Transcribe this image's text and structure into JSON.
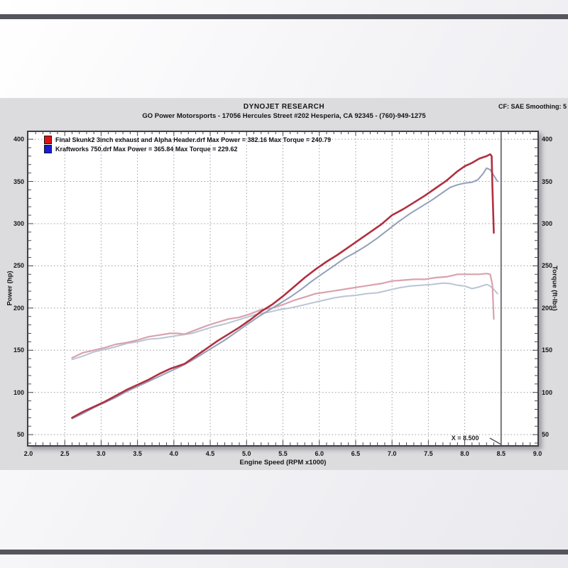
{
  "header": {
    "brand": "DYNOJET RESEARCH",
    "dealer": "GO Power Motorsports - 17056 Hercules Street #202 Hesperia, CA 92345 - (760)-949-1275",
    "cf": "CF: SAE  Smoothing: 5"
  },
  "chart_data": {
    "type": "line",
    "title": "DYNOJET RESEARCH",
    "subtitle": "GO Power Motorsports - 17056 Hercules Street #202 Hesperia, CA 92345 - (760)-949-1275",
    "xlabel": "Engine Speed (RPM x1000)",
    "ylabel_left": "Power (hp)",
    "ylabel_right": "Torque (ft-lbs)",
    "xlim": [
      2.0,
      9.0
    ],
    "ylim": [
      37.5,
      408.5
    ],
    "x_ticks": [
      "2.0",
      "2.5",
      "3.0",
      "3.5",
      "4.0",
      "4.5",
      "5.0",
      "5.5",
      "6.0",
      "6.5",
      "7.0",
      "7.5",
      "8.0",
      "8.5",
      "9.0"
    ],
    "y_ticks": [
      400,
      350,
      300,
      250,
      200,
      150,
      100,
      50
    ],
    "grid": "dotted",
    "legend_position": "top-left",
    "cursor": {
      "x": 8.5,
      "label": "X = 8.500"
    },
    "legend": [
      {
        "label": "Final Skunk2 3inch exhaust and Alpha Header.drf Max Power = 382.16 Max Torque = 240.79",
        "color": "#de1212"
      },
      {
        "label": "Kraftworks 750.drf Max Power = 365.84 Max Torque = 229.62",
        "color": "#1b1bd6"
      }
    ],
    "max_values": {
      "final_skunk2": {
        "max_power_hp": 382.16,
        "max_torque_ftlbs": 240.79
      },
      "kraftworks_750": {
        "max_power_hp": 365.84,
        "max_torque_ftlbs": 229.62
      }
    },
    "series": [
      {
        "id": "torque-curve-kraftworks",
        "name": "Kraftworks 750 — Torque (ft-lbs)",
        "color": "#bac4d5",
        "width": 2,
        "points": [
          [
            2.6,
            139
          ],
          [
            2.75,
            143
          ],
          [
            2.9,
            148
          ],
          [
            3.05,
            151
          ],
          [
            3.2,
            154
          ],
          [
            3.35,
            158
          ],
          [
            3.5,
            160
          ],
          [
            3.65,
            163
          ],
          [
            3.8,
            164
          ],
          [
            3.95,
            166
          ],
          [
            4.1,
            168
          ],
          [
            4.25,
            170
          ],
          [
            4.4,
            174
          ],
          [
            4.55,
            178
          ],
          [
            4.7,
            181
          ],
          [
            4.85,
            185
          ],
          [
            5.0,
            189
          ],
          [
            5.15,
            193
          ],
          [
            5.3,
            195
          ],
          [
            5.45,
            198
          ],
          [
            5.6,
            200
          ],
          [
            5.75,
            203
          ],
          [
            5.9,
            206
          ],
          [
            6.05,
            209
          ],
          [
            6.2,
            212
          ],
          [
            6.35,
            214
          ],
          [
            6.5,
            215
          ],
          [
            6.65,
            217
          ],
          [
            6.8,
            218
          ],
          [
            6.95,
            221
          ],
          [
            7.1,
            224
          ],
          [
            7.25,
            226
          ],
          [
            7.4,
            227
          ],
          [
            7.55,
            228
          ],
          [
            7.7,
            229.6
          ],
          [
            7.8,
            229
          ],
          [
            7.9,
            227
          ],
          [
            8.0,
            226
          ],
          [
            8.1,
            223
          ],
          [
            8.2,
            225
          ],
          [
            8.3,
            228
          ],
          [
            8.35,
            226
          ],
          [
            8.4,
            222
          ],
          [
            8.45,
            217
          ]
        ]
      },
      {
        "id": "torque-curve-skunk2",
        "name": "Final Skunk2 3inch exhaust and Alpha Header — Torque (ft-lbs)",
        "color": "#d9a2ae",
        "width": 2.2,
        "points": [
          [
            2.6,
            141
          ],
          [
            2.75,
            147
          ],
          [
            2.9,
            150
          ],
          [
            3.05,
            153
          ],
          [
            3.2,
            157
          ],
          [
            3.35,
            159
          ],
          [
            3.5,
            162
          ],
          [
            3.65,
            166
          ],
          [
            3.8,
            168
          ],
          [
            3.95,
            170
          ],
          [
            4.05,
            170
          ],
          [
            4.15,
            169
          ],
          [
            4.3,
            174
          ],
          [
            4.45,
            179
          ],
          [
            4.6,
            183
          ],
          [
            4.75,
            187
          ],
          [
            4.9,
            189
          ],
          [
            5.05,
            193
          ],
          [
            5.2,
            198
          ],
          [
            5.35,
            200
          ],
          [
            5.5,
            204
          ],
          [
            5.65,
            209
          ],
          [
            5.8,
            213
          ],
          [
            5.95,
            217
          ],
          [
            6.1,
            219
          ],
          [
            6.25,
            221
          ],
          [
            6.4,
            223
          ],
          [
            6.55,
            225
          ],
          [
            6.7,
            227
          ],
          [
            6.85,
            229
          ],
          [
            7.0,
            232
          ],
          [
            7.15,
            233
          ],
          [
            7.3,
            234
          ],
          [
            7.45,
            234
          ],
          [
            7.6,
            236
          ],
          [
            7.75,
            237
          ],
          [
            7.9,
            240
          ],
          [
            8.0,
            240
          ],
          [
            8.1,
            240
          ],
          [
            8.2,
            240
          ],
          [
            8.3,
            240.8
          ],
          [
            8.35,
            240
          ],
          [
            8.38,
            228
          ],
          [
            8.4,
            187
          ]
        ]
      },
      {
        "id": "power-curve-kraftworks",
        "name": "Kraftworks 750 — Power (hp)",
        "color": "#93a0b8",
        "width": 2,
        "points": [
          [
            2.6,
            69
          ],
          [
            2.75,
            75
          ],
          [
            2.9,
            82
          ],
          [
            3.05,
            88
          ],
          [
            3.2,
            94
          ],
          [
            3.35,
            101
          ],
          [
            3.5,
            107
          ],
          [
            3.65,
            113
          ],
          [
            3.8,
            119
          ],
          [
            3.95,
            125
          ],
          [
            4.1,
            131
          ],
          [
            4.25,
            138
          ],
          [
            4.4,
            146
          ],
          [
            4.55,
            154
          ],
          [
            4.7,
            162
          ],
          [
            4.85,
            171
          ],
          [
            5.0,
            180
          ],
          [
            5.15,
            189
          ],
          [
            5.3,
            197
          ],
          [
            5.45,
            205
          ],
          [
            5.6,
            213
          ],
          [
            5.75,
            222
          ],
          [
            5.9,
            232
          ],
          [
            6.05,
            241
          ],
          [
            6.2,
            250
          ],
          [
            6.35,
            259
          ],
          [
            6.5,
            266
          ],
          [
            6.65,
            274
          ],
          [
            6.8,
            283
          ],
          [
            6.95,
            293
          ],
          [
            7.1,
            303
          ],
          [
            7.25,
            312
          ],
          [
            7.4,
            320
          ],
          [
            7.55,
            328
          ],
          [
            7.7,
            337
          ],
          [
            7.8,
            343
          ],
          [
            7.9,
            346
          ],
          [
            8.0,
            348
          ],
          [
            8.1,
            349
          ],
          [
            8.18,
            352
          ],
          [
            8.25,
            359
          ],
          [
            8.3,
            365.8
          ],
          [
            8.35,
            364
          ],
          [
            8.4,
            357
          ],
          [
            8.45,
            350
          ]
        ]
      },
      {
        "id": "power-curve-skunk2",
        "name": "Final Skunk2 3inch exhaust and Alpha Header — Power (hp)",
        "color": "#b03040",
        "width": 2.6,
        "points": [
          [
            2.6,
            70
          ],
          [
            2.75,
            77
          ],
          [
            2.9,
            83
          ],
          [
            3.05,
            89
          ],
          [
            3.2,
            96
          ],
          [
            3.35,
            103
          ],
          [
            3.5,
            109
          ],
          [
            3.65,
            115
          ],
          [
            3.8,
            122
          ],
          [
            3.95,
            128
          ],
          [
            4.05,
            131
          ],
          [
            4.15,
            134
          ],
          [
            4.3,
            143
          ],
          [
            4.45,
            152
          ],
          [
            4.6,
            161
          ],
          [
            4.75,
            169
          ],
          [
            4.9,
            177
          ],
          [
            5.05,
            186
          ],
          [
            5.2,
            196
          ],
          [
            5.35,
            204
          ],
          [
            5.5,
            214
          ],
          [
            5.65,
            225
          ],
          [
            5.8,
            236
          ],
          [
            5.95,
            246
          ],
          [
            6.1,
            255
          ],
          [
            6.25,
            263
          ],
          [
            6.4,
            272
          ],
          [
            6.55,
            281
          ],
          [
            6.7,
            290
          ],
          [
            6.85,
            299
          ],
          [
            7.0,
            310
          ],
          [
            7.15,
            317
          ],
          [
            7.3,
            325
          ],
          [
            7.45,
            333
          ],
          [
            7.6,
            342
          ],
          [
            7.75,
            351
          ],
          [
            7.9,
            362
          ],
          [
            8.0,
            368
          ],
          [
            8.1,
            372
          ],
          [
            8.2,
            377
          ],
          [
            8.3,
            380
          ],
          [
            8.35,
            382.2
          ],
          [
            8.37,
            380
          ],
          [
            8.38,
            345
          ],
          [
            8.4,
            289
          ]
        ]
      }
    ]
  }
}
